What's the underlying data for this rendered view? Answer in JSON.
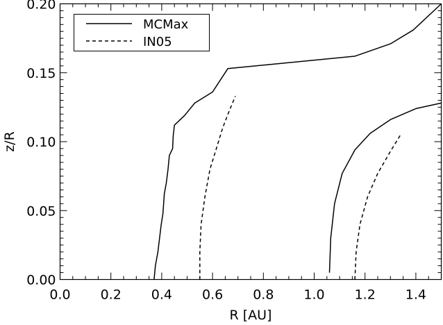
{
  "chart_data": {
    "type": "line",
    "xlabel": "R [AU]",
    "ylabel": "z/R",
    "xlim": [
      0.0,
      1.5
    ],
    "ylim": [
      0.0,
      0.2
    ],
    "x_ticks": [
      "0.0",
      "0.2",
      "0.4",
      "0.6",
      "0.8",
      "1.0",
      "1.2",
      "1.4"
    ],
    "y_ticks": [
      "0.00",
      "0.05",
      "0.10",
      "0.15",
      "0.20"
    ],
    "grid": false,
    "legend_position": "top-left",
    "series": [
      {
        "name": "MCMax",
        "style": "solid",
        "color": "#000000",
        "segments": [
          [
            [
              0.37,
              0.0
            ],
            [
              0.375,
              0.01
            ],
            [
              0.385,
              0.02
            ],
            [
              0.398,
              0.04
            ],
            [
              0.405,
              0.048
            ],
            [
              0.41,
              0.062
            ],
            [
              0.418,
              0.07
            ],
            [
              0.425,
              0.08
            ],
            [
              0.43,
              0.09
            ],
            [
              0.443,
              0.095
            ],
            [
              0.445,
              0.104
            ],
            [
              0.45,
              0.112
            ],
            [
              0.49,
              0.119
            ],
            [
              0.53,
              0.128
            ],
            [
              0.6,
              0.136
            ],
            [
              0.66,
              0.153
            ],
            [
              1.16,
              0.162
            ],
            [
              1.3,
              0.171
            ],
            [
              1.39,
              0.181
            ],
            [
              1.5,
              0.2
            ]
          ],
          [
            [
              1.06,
              0.005
            ],
            [
              1.065,
              0.03
            ],
            [
              1.08,
              0.055
            ],
            [
              1.11,
              0.077
            ],
            [
              1.16,
              0.094
            ],
            [
              1.22,
              0.106
            ],
            [
              1.3,
              0.116
            ],
            [
              1.4,
              0.124
            ],
            [
              1.5,
              0.128
            ]
          ]
        ]
      },
      {
        "name": "IN05",
        "style": "dashed",
        "color": "#000000",
        "segments": [
          [
            [
              0.55,
              0.0
            ],
            [
              0.55,
              0.02
            ],
            [
              0.555,
              0.04
            ],
            [
              0.57,
              0.06
            ],
            [
              0.59,
              0.08
            ],
            [
              0.615,
              0.095
            ],
            [
              0.64,
              0.11
            ],
            [
              0.665,
              0.122
            ],
            [
              0.69,
              0.133
            ]
          ],
          [
            [
              1.16,
              0.0
            ],
            [
              1.165,
              0.02
            ],
            [
              1.18,
              0.04
            ],
            [
              1.21,
              0.06
            ],
            [
              1.25,
              0.077
            ],
            [
              1.3,
              0.093
            ],
            [
              1.34,
              0.105
            ]
          ]
        ]
      }
    ]
  }
}
